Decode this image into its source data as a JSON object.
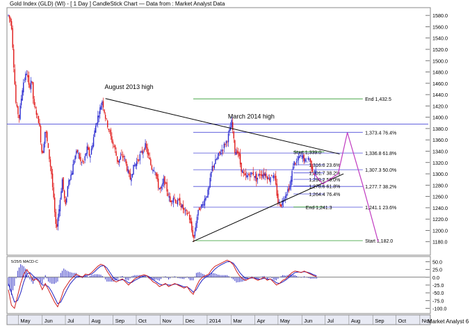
{
  "chart_data": {
    "type": "candlestick",
    "title": "Gold Index (GLD) (WI) - [ 1 Day ] CandleStick Chart — Data from : Market Analyst Data",
    "source_tag": "Market Analyst 6",
    "y_range": [
      1160,
      1590
    ],
    "y_ticks": [
      "1580.0",
      "1560.0",
      "1540.0",
      "1520.0",
      "1500.0",
      "1480.0",
      "1460.0",
      "1440.0",
      "1420.0",
      "1400.0",
      "1380.0",
      "1360.0",
      "1340.0",
      "1320.0",
      "1300.0",
      "1280.0",
      "1260.0",
      "1240.0",
      "1220.0",
      "1200.0",
      "1180.0"
    ],
    "month_labels": [
      {
        "label": "May",
        "day": 13
      },
      {
        "label": "Jun",
        "day": 44
      },
      {
        "label": "Jul",
        "day": 74
      },
      {
        "label": "Aug",
        "day": 105
      },
      {
        "label": "Sep",
        "day": 136
      },
      {
        "label": "Oct",
        "day": 166
      },
      {
        "label": "Nov",
        "day": 197
      },
      {
        "label": "Dec",
        "day": 227
      },
      {
        "label": "2014",
        "day": 258
      },
      {
        "label": "Mar",
        "day": 289
      },
      {
        "label": "Apr",
        "day": 320
      },
      {
        "label": "May",
        "day": 350
      },
      {
        "label": "Jun",
        "day": 381
      },
      {
        "label": "Jul",
        "day": 411
      },
      {
        "label": "Aug",
        "day": 442
      },
      {
        "label": "Sep",
        "day": 473
      },
      {
        "label": "Oct",
        "day": 503
      },
      {
        "label": "Nov",
        "day": 534
      }
    ],
    "price_path": [
      [
        0,
        1580
      ],
      [
        4,
        1565
      ],
      [
        10,
        1420
      ],
      [
        14,
        1400
      ],
      [
        19,
        1460
      ],
      [
        24,
        1480
      ],
      [
        27,
        1450
      ],
      [
        30,
        1470
      ],
      [
        33,
        1420
      ],
      [
        36,
        1410
      ],
      [
        40,
        1390
      ],
      [
        44,
        1330
      ],
      [
        48,
        1380
      ],
      [
        52,
        1340
      ],
      [
        56,
        1300
      ],
      [
        59,
        1250
      ],
      [
        62,
        1200
      ],
      [
        66,
        1240
      ],
      [
        70,
        1290
      ],
      [
        74,
        1240
      ],
      [
        78,
        1290
      ],
      [
        82,
        1300
      ],
      [
        86,
        1330
      ],
      [
        90,
        1340
      ],
      [
        94,
        1320
      ],
      [
        98,
        1320
      ],
      [
        102,
        1345
      ],
      [
        106,
        1330
      ],
      [
        110,
        1360
      ],
      [
        114,
        1390
      ],
      [
        118,
        1410
      ],
      [
        122,
        1430
      ],
      [
        126,
        1400
      ],
      [
        130,
        1380
      ],
      [
        134,
        1360
      ],
      [
        138,
        1345
      ],
      [
        142,
        1320
      ],
      [
        146,
        1330
      ],
      [
        150,
        1330
      ],
      [
        154,
        1310
      ],
      [
        158,
        1290
      ],
      [
        162,
        1310
      ],
      [
        166,
        1320
      ],
      [
        170,
        1330
      ],
      [
        174,
        1340
      ],
      [
        178,
        1350
      ],
      [
        182,
        1330
      ],
      [
        186,
        1310
      ],
      [
        190,
        1310
      ],
      [
        194,
        1280
      ],
      [
        198,
        1270
      ],
      [
        202,
        1290
      ],
      [
        206,
        1270
      ],
      [
        210,
        1250
      ],
      [
        214,
        1260
      ],
      [
        218,
        1250
      ],
      [
        222,
        1250
      ],
      [
        226,
        1240
      ],
      [
        230,
        1230
      ],
      [
        234,
        1230
      ],
      [
        238,
        1200
      ],
      [
        241,
        1185
      ],
      [
        244,
        1220
      ],
      [
        248,
        1240
      ],
      [
        252,
        1245
      ],
      [
        256,
        1260
      ],
      [
        260,
        1270
      ],
      [
        264,
        1310
      ],
      [
        268,
        1320
      ],
      [
        272,
        1330
      ],
      [
        276,
        1340
      ],
      [
        280,
        1350
      ],
      [
        284,
        1360
      ],
      [
        288,
        1380
      ],
      [
        290,
        1392
      ],
      [
        294,
        1340
      ],
      [
        298,
        1340
      ],
      [
        302,
        1310
      ],
      [
        306,
        1295
      ],
      [
        310,
        1295
      ],
      [
        314,
        1300
      ],
      [
        318,
        1300
      ],
      [
        322,
        1290
      ],
      [
        326,
        1300
      ],
      [
        330,
        1300
      ],
      [
        334,
        1300
      ],
      [
        338,
        1290
      ],
      [
        342,
        1300
      ],
      [
        346,
        1290
      ],
      [
        350,
        1250
      ],
      [
        354,
        1245
      ],
      [
        358,
        1260
      ],
      [
        362,
        1270
      ],
      [
        366,
        1280
      ],
      [
        370,
        1320
      ],
      [
        374,
        1320
      ],
      [
        378,
        1330
      ],
      [
        382,
        1330
      ],
      [
        386,
        1320
      ],
      [
        390,
        1330
      ],
      [
        394,
        1310
      ],
      [
        397,
        1300
      ],
      [
        400,
        1305
      ]
    ],
    "horizontal_lines": [
      {
        "value": 1388,
        "color": "#4a4ad8"
      }
    ],
    "trendlines": [
      {
        "from": [
          126,
          1433
        ],
        "to": [
          430,
          1335
        ],
        "color": "#000000"
      },
      {
        "from": [
          239,
          1180
        ],
        "to": [
          435,
          1300
        ],
        "color": "#000000"
      }
    ],
    "fib_levels": [
      {
        "value": 1432.5,
        "label": "End 1,432.5",
        "color": "#2e9b2e",
        "x_start": 240,
        "x_end": 460,
        "label_day": 463
      },
      {
        "value": 1373.4,
        "label": "1,373.4 76.4%",
        "color": "#4a4ad8",
        "x_start": 240,
        "x_end": 460,
        "label_day": 463
      },
      {
        "value": 1336.8,
        "label": "1,336.8 61.8%",
        "color": "#4a4ad8",
        "x_start": 240,
        "x_end": 460,
        "label_day": 463
      },
      {
        "value": 1307.3,
        "label": "1,307.3 50.0%",
        "color": "#4a4ad8",
        "x_start": 240,
        "x_end": 460,
        "label_day": 463
      },
      {
        "value": 1277.7,
        "label": "1,277.7 38.2%",
        "color": "#4a4ad8",
        "x_start": 240,
        "x_end": 460,
        "label_day": 463
      },
      {
        "value": 1241.1,
        "label": "1,241.1 23.6%",
        "color": "#4a4ad8",
        "x_start": 240,
        "x_end": 460,
        "label_day": 463
      },
      {
        "value": 1182.0,
        "label": "Start 1,182.0",
        "color": "#2e9b2e",
        "x_start": 240,
        "x_end": 460,
        "label_day": 463
      },
      {
        "value": 1339.0,
        "label": "Start 1,339.0",
        "color": "#2e9b2e",
        "x_start": 370,
        "x_end": 410,
        "label_day": 370
      },
      {
        "value": 1316.0,
        "label": "1,316.0 23.6%",
        "color": "#4a4ad8",
        "x_start": 370,
        "x_end": 410,
        "label_day": 390
      },
      {
        "value": 1301.7,
        "label": "1,301.7 38.2%",
        "color": "#4a4ad8",
        "x_start": 370,
        "x_end": 410,
        "label_day": 390
      },
      {
        "value": 1290.2,
        "label": "1,290.2 50.0%",
        "color": "#4a4ad8",
        "x_start": 370,
        "x_end": 410,
        "label_day": 390
      },
      {
        "value": 1278.6,
        "label": "1,278.6 61.8%",
        "color": "#4a4ad8",
        "x_start": 370,
        "x_end": 410,
        "label_day": 390
      },
      {
        "value": 1264.4,
        "label": "1,264.4 76.4%",
        "color": "#4a4ad8",
        "x_start": 370,
        "x_end": 410,
        "label_day": 390
      },
      {
        "value": 1241.3,
        "label": "End 1,241.3",
        "color": "#2e9b2e",
        "x_start": 370,
        "x_end": 410,
        "label_day": 386
      }
    ],
    "projection_path": {
      "color": "#c039c0",
      "points": [
        [
          397,
          1300
        ],
        [
          408,
          1282
        ],
        [
          428,
          1300
        ],
        [
          440,
          1373
        ],
        [
          460,
          1280
        ],
        [
          480,
          1180
        ]
      ]
    },
    "annotations": [
      {
        "text": "August 2013 high",
        "day": 125,
        "value": 1450
      },
      {
        "text": "March 2014 high",
        "day": 285,
        "value": 1398
      }
    ],
    "macd": {
      "label": "5/25/5 MACD-C",
      "y_range": [
        -110,
        60
      ],
      "y_ticks": [
        "50.0",
        "25.0",
        "0.0",
        "-25.0",
        "-50.0",
        "-75.0",
        "-100.0"
      ],
      "line_color": "#d02020",
      "signal_color": "#2020c0",
      "hist_color": "#2020c0",
      "line": [
        [
          0,
          -40
        ],
        [
          4,
          -90
        ],
        [
          8,
          -100
        ],
        [
          12,
          -60
        ],
        [
          16,
          -20
        ],
        [
          20,
          10
        ],
        [
          24,
          25
        ],
        [
          28,
          10
        ],
        [
          32,
          -10
        ],
        [
          36,
          -5
        ],
        [
          40,
          -15
        ],
        [
          44,
          -40
        ],
        [
          48,
          -20
        ],
        [
          52,
          -40
        ],
        [
          56,
          -60
        ],
        [
          60,
          -80
        ],
        [
          64,
          -95
        ],
        [
          68,
          -70
        ],
        [
          72,
          -40
        ],
        [
          76,
          -25
        ],
        [
          80,
          -10
        ],
        [
          84,
          0
        ],
        [
          88,
          10
        ],
        [
          92,
          5
        ],
        [
          96,
          0
        ],
        [
          100,
          10
        ],
        [
          104,
          8
        ],
        [
          108,
          15
        ],
        [
          112,
          25
        ],
        [
          116,
          35
        ],
        [
          120,
          42
        ],
        [
          124,
          38
        ],
        [
          128,
          20
        ],
        [
          132,
          5
        ],
        [
          136,
          -10
        ],
        [
          140,
          -15
        ],
        [
          144,
          -10
        ],
        [
          148,
          -5
        ],
        [
          152,
          -15
        ],
        [
          156,
          -25
        ],
        [
          160,
          -15
        ],
        [
          164,
          -5
        ],
        [
          168,
          0
        ],
        [
          172,
          5
        ],
        [
          176,
          8
        ],
        [
          180,
          5
        ],
        [
          184,
          -5
        ],
        [
          188,
          -15
        ],
        [
          192,
          -20
        ],
        [
          196,
          -30
        ],
        [
          200,
          -25
        ],
        [
          204,
          -20
        ],
        [
          208,
          -30
        ],
        [
          212,
          -25
        ],
        [
          216,
          -20
        ],
        [
          220,
          -25
        ],
        [
          224,
          -30
        ],
        [
          228,
          -35
        ],
        [
          232,
          -30
        ],
        [
          236,
          -45
        ],
        [
          240,
          -55
        ],
        [
          244,
          -30
        ],
        [
          248,
          -10
        ],
        [
          252,
          0
        ],
        [
          256,
          5
        ],
        [
          260,
          10
        ],
        [
          264,
          25
        ],
        [
          268,
          35
        ],
        [
          272,
          40
        ],
        [
          276,
          45
        ],
        [
          280,
          50
        ],
        [
          284,
          55
        ],
        [
          288,
          50
        ],
        [
          292,
          40
        ],
        [
          296,
          20
        ],
        [
          300,
          5
        ],
        [
          304,
          -5
        ],
        [
          308,
          -10
        ],
        [
          312,
          -5
        ],
        [
          316,
          0
        ],
        [
          320,
          -5
        ],
        [
          324,
          -10
        ],
        [
          328,
          -5
        ],
        [
          332,
          0
        ],
        [
          336,
          -10
        ],
        [
          340,
          -5
        ],
        [
          344,
          -15
        ],
        [
          348,
          -25
        ],
        [
          352,
          -20
        ],
        [
          356,
          -10
        ],
        [
          360,
          -5
        ],
        [
          364,
          5
        ],
        [
          368,
          15
        ],
        [
          372,
          20
        ],
        [
          376,
          18
        ],
        [
          380,
          15
        ],
        [
          384,
          20
        ],
        [
          388,
          15
        ],
        [
          392,
          10
        ],
        [
          396,
          5
        ],
        [
          400,
          2
        ]
      ],
      "signal": [
        [
          0,
          -20
        ],
        [
          4,
          -50
        ],
        [
          8,
          -80
        ],
        [
          12,
          -75
        ],
        [
          16,
          -50
        ],
        [
          20,
          -15
        ],
        [
          24,
          10
        ],
        [
          28,
          15
        ],
        [
          32,
          5
        ],
        [
          36,
          -3
        ],
        [
          40,
          -10
        ],
        [
          44,
          -25
        ],
        [
          48,
          -25
        ],
        [
          52,
          -30
        ],
        [
          56,
          -45
        ],
        [
          60,
          -65
        ],
        [
          64,
          -85
        ],
        [
          68,
          -80
        ],
        [
          72,
          -60
        ],
        [
          76,
          -40
        ],
        [
          80,
          -22
        ],
        [
          84,
          -10
        ],
        [
          88,
          0
        ],
        [
          92,
          3
        ],
        [
          96,
          2
        ],
        [
          100,
          5
        ],
        [
          104,
          7
        ],
        [
          108,
          10
        ],
        [
          112,
          18
        ],
        [
          116,
          28
        ],
        [
          120,
          36
        ],
        [
          124,
          38
        ],
        [
          128,
          30
        ],
        [
          132,
          15
        ],
        [
          136,
          0
        ],
        [
          140,
          -8
        ],
        [
          144,
          -10
        ],
        [
          148,
          -8
        ],
        [
          152,
          -10
        ],
        [
          156,
          -18
        ],
        [
          160,
          -17
        ],
        [
          164,
          -10
        ],
        [
          168,
          -5
        ],
        [
          172,
          0
        ],
        [
          176,
          4
        ],
        [
          180,
          5
        ],
        [
          184,
          0
        ],
        [
          188,
          -8
        ],
        [
          192,
          -15
        ],
        [
          196,
          -22
        ],
        [
          200,
          -25
        ],
        [
          204,
          -22
        ],
        [
          208,
          -25
        ],
        [
          212,
          -25
        ],
        [
          216,
          -22
        ],
        [
          220,
          -23
        ],
        [
          224,
          -27
        ],
        [
          228,
          -31
        ],
        [
          232,
          -31
        ],
        [
          236,
          -38
        ],
        [
          240,
          -48
        ],
        [
          244,
          -40
        ],
        [
          248,
          -22
        ],
        [
          252,
          -8
        ],
        [
          256,
          0
        ],
        [
          260,
          6
        ],
        [
          264,
          15
        ],
        [
          268,
          26
        ],
        [
          272,
          34
        ],
        [
          276,
          40
        ],
        [
          280,
          45
        ],
        [
          284,
          50
        ],
        [
          288,
          50
        ],
        [
          292,
          45
        ],
        [
          296,
          32
        ],
        [
          300,
          16
        ],
        [
          304,
          5
        ],
        [
          308,
          -3
        ],
        [
          312,
          -4
        ],
        [
          316,
          -2
        ],
        [
          320,
          -3
        ],
        [
          324,
          -6
        ],
        [
          328,
          -6
        ],
        [
          332,
          -3
        ],
        [
          336,
          -6
        ],
        [
          340,
          -6
        ],
        [
          344,
          -10
        ],
        [
          348,
          -18
        ],
        [
          352,
          -20
        ],
        [
          356,
          -15
        ],
        [
          360,
          -9
        ],
        [
          364,
          -1
        ],
        [
          368,
          8
        ],
        [
          372,
          15
        ],
        [
          376,
          17
        ],
        [
          380,
          16
        ],
        [
          384,
          18
        ],
        [
          388,
          16
        ],
        [
          392,
          13
        ],
        [
          396,
          8
        ],
        [
          400,
          5
        ]
      ]
    }
  }
}
